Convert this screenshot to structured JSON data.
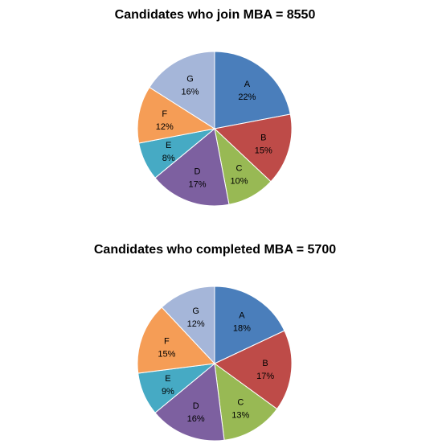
{
  "chart_data": [
    {
      "type": "pie",
      "title": "Candidates who join MBA = 8550",
      "categories": [
        "A",
        "B",
        "C",
        "D",
        "E",
        "F",
        "G"
      ],
      "values": [
        22,
        15,
        10,
        17,
        8,
        12,
        16
      ],
      "value_labels": [
        "22%",
        "15%",
        "10%",
        "17%",
        "8%",
        "12%",
        "16%"
      ],
      "colors": [
        "#4a7ebb",
        "#be4b48",
        "#98b954",
        "#7d60a0",
        "#46aac4",
        "#f59d56",
        "#a5b6d9"
      ],
      "start_angle": "12 o'clock",
      "direction": "clockwise",
      "legend": "none"
    },
    {
      "type": "pie",
      "title": "Candidates who completed MBA = 5700",
      "categories": [
        "A",
        "B",
        "C",
        "D",
        "E",
        "F",
        "G"
      ],
      "values": [
        18,
        17,
        13,
        16,
        9,
        15,
        12
      ],
      "value_labels": [
        "18%",
        "17%",
        "13%",
        "16%",
        "9%",
        "15%",
        "12%"
      ],
      "colors": [
        "#4a7ebb",
        "#be4b48",
        "#98b954",
        "#7d60a0",
        "#46aac4",
        "#f59d56",
        "#a5b6d9"
      ],
      "start_angle": "12 o'clock",
      "direction": "clockwise",
      "legend": "none"
    }
  ]
}
